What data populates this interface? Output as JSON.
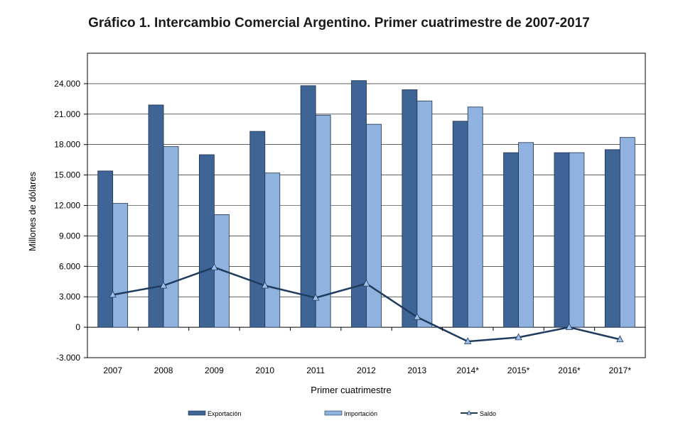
{
  "chart_data": {
    "type": "bar",
    "title": "Gráfico 1. Intercambio Comercial Argentino. Primer cuatrimestre de 2007-2017",
    "xlabel": "Primer cuatrimestre",
    "ylabel": "Millones de dólares",
    "ylim": [
      -3000,
      27000
    ],
    "yticks": [
      -3000,
      0,
      3000,
      6000,
      9000,
      12000,
      15000,
      18000,
      21000,
      24000
    ],
    "ytick_labels": [
      "-3.000",
      "0",
      "3.000",
      "6.000",
      "9.000",
      "12.000",
      "15.000",
      "18.000",
      "21.000",
      "24.000"
    ],
    "categories": [
      "2007",
      "2008",
      "2009",
      "2010",
      "2011",
      "2012",
      "2013",
      "2014*",
      "2015*",
      "2016*",
      "2017*"
    ],
    "series": [
      {
        "name": "Exportación",
        "kind": "bar",
        "color": "#3f6597",
        "values": [
          15400,
          21900,
          17000,
          19300,
          23800,
          24300,
          23400,
          20300,
          17200,
          17200,
          17500
        ]
      },
      {
        "name": "Importación",
        "kind": "bar",
        "color": "#8fb2df",
        "values": [
          12200,
          17800,
          11100,
          15200,
          20900,
          20000,
          22300,
          21700,
          18200,
          17200,
          18700
        ]
      },
      {
        "name": "Saldo",
        "kind": "line",
        "color": "#1f3b5e",
        "marker_color": "#9fbde6",
        "values": [
          3200,
          4100,
          5900,
          4100,
          2900,
          4300,
          1000,
          -1400,
          -1000,
          0,
          -1200
        ]
      }
    ],
    "grid": true,
    "legend_position": "bottom"
  }
}
